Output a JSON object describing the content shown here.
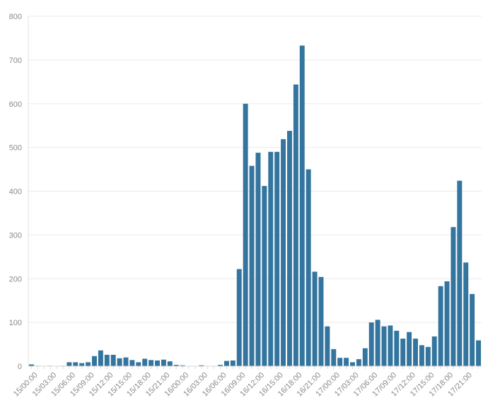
{
  "chart_data": {
    "type": "bar",
    "title": "",
    "xlabel": "",
    "ylabel": "",
    "ylim": [
      0,
      800
    ],
    "yticks": [
      0,
      100,
      200,
      300,
      400,
      500,
      600,
      700,
      800
    ],
    "grid": true,
    "bar_color": "#33759e",
    "grid_color": "#ebebeb",
    "axis_text_color": "#8a8a8a",
    "x_tick_labels": [
      "15/00:00",
      "15/03:00",
      "15/06:00",
      "15/09:00",
      "15/12:00",
      "15/15:00",
      "15/18:00",
      "15/21:00",
      "16/00:00",
      "16/03:00",
      "16/06:00",
      "16/09:00",
      "16/12:00",
      "16/15:00",
      "16/18:00",
      "16/21:00",
      "17/00:00",
      "17/03:00",
      "17/06:00",
      "17/09:00",
      "17/12:00",
      "17/15:00",
      "17/18:00",
      "17/21:00"
    ],
    "categories": [
      "15/00:00",
      "15/01:00",
      "15/02:00",
      "15/03:00",
      "15/04:00",
      "15/05:00",
      "15/06:00",
      "15/07:00",
      "15/08:00",
      "15/09:00",
      "15/10:00",
      "15/11:00",
      "15/12:00",
      "15/13:00",
      "15/14:00",
      "15/15:00",
      "15/16:00",
      "15/17:00",
      "15/18:00",
      "15/19:00",
      "15/20:00",
      "15/21:00",
      "15/22:00",
      "15/23:00",
      "16/00:00",
      "16/01:00",
      "16/02:00",
      "16/03:00",
      "16/04:00",
      "16/05:00",
      "16/06:00",
      "16/07:00",
      "16/08:00",
      "16/09:00",
      "16/10:00",
      "16/11:00",
      "16/12:00",
      "16/13:00",
      "16/14:00",
      "16/15:00",
      "16/16:00",
      "16/17:00",
      "16/18:00",
      "16/19:00",
      "16/20:00",
      "16/21:00",
      "16/22:00",
      "16/23:00",
      "17/00:00",
      "17/01:00",
      "17/02:00",
      "17/03:00",
      "17/04:00",
      "17/05:00",
      "17/06:00",
      "17/07:00",
      "17/08:00",
      "17/09:00",
      "17/10:00",
      "17/11:00",
      "17/12:00",
      "17/13:00",
      "17/14:00",
      "17/15:00",
      "17/16:00",
      "17/17:00",
      "17/18:00",
      "17/19:00",
      "17/20:00",
      "17/21:00",
      "17/22:00",
      "17/23:00"
    ],
    "values": [
      4,
      1,
      0,
      1,
      0,
      1,
      9,
      9,
      7,
      9,
      23,
      36,
      26,
      26,
      18,
      20,
      14,
      9,
      17,
      14,
      13,
      15,
      11,
      3,
      2,
      0,
      0,
      2,
      0,
      0,
      3,
      12,
      13,
      222,
      600,
      458,
      488,
      412,
      490,
      490,
      519,
      538,
      644,
      733,
      450,
      216,
      204,
      91,
      39,
      19,
      19,
      9,
      16,
      41,
      100,
      106,
      91,
      93,
      81,
      63,
      78,
      63,
      48,
      44,
      68,
      183,
      194,
      318,
      424,
      237,
      165,
      59
    ]
  }
}
